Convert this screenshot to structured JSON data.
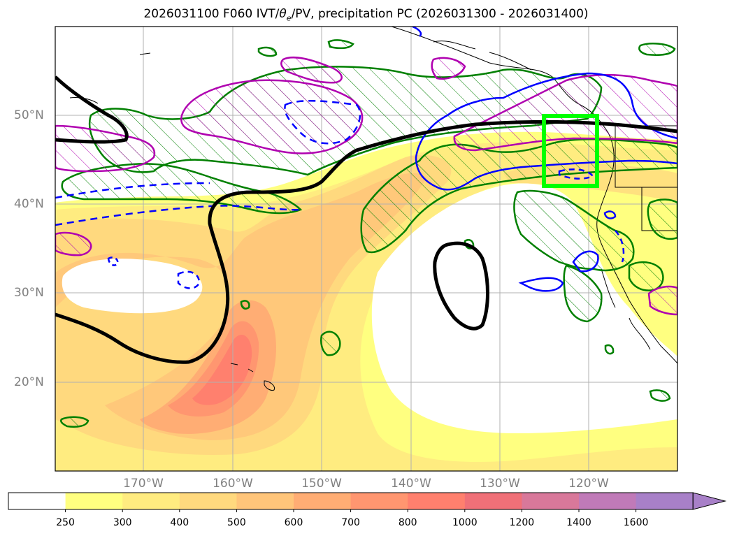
{
  "figure": {
    "title_main": "2026031100 F060 IVT/",
    "title_theta": "θ",
    "title_sub": "e",
    "title_rest": "/PV, precipitation PC (2026031300 - 2026031400)"
  },
  "axes": {
    "lat_labels": [
      "50°N",
      "40°N",
      "30°N",
      "20°N"
    ],
    "lon_labels": [
      "170°W",
      "160°W",
      "150°W",
      "140°W",
      "130°W",
      "120°W"
    ]
  },
  "colorbar": {
    "tick_labels": [
      "250",
      "300",
      "400",
      "500",
      "600",
      "700",
      "800",
      "1000",
      "1200",
      "1400",
      "1600"
    ],
    "colors": [
      "#ffffff",
      "#ffff80",
      "#ffec80",
      "#ffd97e",
      "#ffc57a",
      "#ffad74",
      "#ff9670",
      "#ff806e",
      "#f07078",
      "#d8789a",
      "#c07ab8",
      "#a880c8"
    ]
  },
  "layers": {
    "ivt_fill": "IVT shading",
    "theta_e_contour_color": "#000000",
    "pv_contour_color": "#0000ff",
    "precip_pc_positive_color": "#008000",
    "precip_pc_negative_color": "#b000b0",
    "target_box_color": "#00ff00"
  }
}
